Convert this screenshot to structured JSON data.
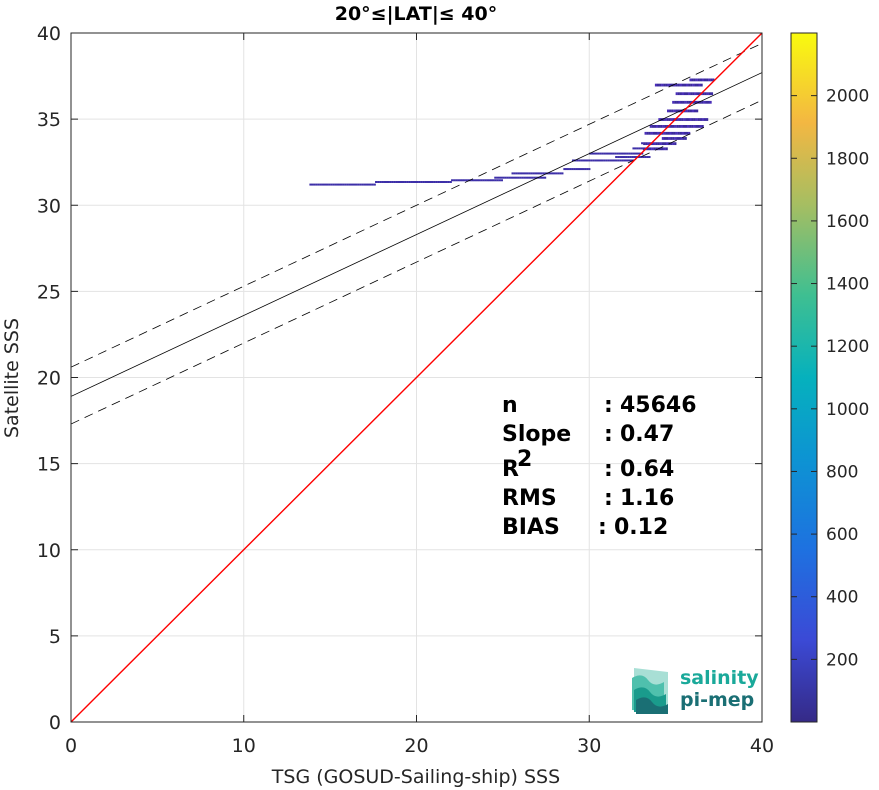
{
  "chart_data": {
    "type": "scatter",
    "title": "20°≤|LAT|≤ 40°",
    "xlabel": "TSG (GOSUD-Sailing-ship) SSS",
    "ylabel": "Satellite SSS",
    "xlim": [
      0,
      40
    ],
    "ylim": [
      0,
      40
    ],
    "xticks": [
      "0",
      "10",
      "20",
      "30",
      "40"
    ],
    "yticks": [
      "0",
      "5",
      "10",
      "15",
      "20",
      "25",
      "30",
      "35",
      "40"
    ],
    "grid": true,
    "colorbar": {
      "range": [
        0,
        2200
      ],
      "ticks": [
        "200",
        "400",
        "600",
        "800",
        "1000",
        "1200",
        "1400",
        "1600",
        "1800",
        "2000"
      ],
      "colormap": "parula"
    },
    "lines": {
      "identity": {
        "slope": 1,
        "intercept": 0,
        "color": "#ff0000"
      },
      "fit": {
        "slope": 0.47,
        "intercept": 18.9,
        "color": "#000000"
      },
      "fit_upper": {
        "slope": 0.47,
        "intercept": 20.6,
        "color": "#000000",
        "style": "dashed"
      },
      "fit_lower": {
        "slope": 0.47,
        "intercept": 17.3,
        "color": "#000000",
        "style": "dashed"
      }
    },
    "density_segments": [
      {
        "x0": 13.8,
        "x1": 17.6,
        "y": 31.2
      },
      {
        "x0": 17.6,
        "x1": 22.0,
        "y": 31.35
      },
      {
        "x0": 22.0,
        "x1": 25.0,
        "y": 31.45
      },
      {
        "x0": 24.5,
        "x1": 27.5,
        "y": 31.6
      },
      {
        "x0": 25.5,
        "x1": 28.5,
        "y": 31.85
      },
      {
        "x0": 28.5,
        "x1": 30.0,
        "y": 32.1
      },
      {
        "x0": 29.0,
        "x1": 32.5,
        "y": 32.6
      },
      {
        "x0": 30.0,
        "x1": 33.0,
        "y": 33.0
      },
      {
        "x0": 31.5,
        "x1": 33.5,
        "y": 32.8
      },
      {
        "x0": 33.0,
        "x1": 35.0,
        "y": 33.6
      },
      {
        "x0": 33.2,
        "x1": 35.8,
        "y": 34.2
      },
      {
        "x0": 33.5,
        "x1": 36.5,
        "y": 34.6
      },
      {
        "x0": 34.0,
        "x1": 36.8,
        "y": 35.0
      },
      {
        "x0": 34.5,
        "x1": 36.2,
        "y": 35.5
      },
      {
        "x0": 34.8,
        "x1": 37.0,
        "y": 36.0
      },
      {
        "x0": 35.0,
        "x1": 37.1,
        "y": 36.5
      },
      {
        "x0": 33.8,
        "x1": 36.5,
        "y": 37.0
      },
      {
        "x0": 35.8,
        "x1": 37.2,
        "y": 37.3
      },
      {
        "x0": 32.5,
        "x1": 34.5,
        "y": 33.3
      },
      {
        "x0": 34.2,
        "x1": 35.6,
        "y": 33.9
      }
    ],
    "stats": [
      {
        "label": "n",
        "sep": ":",
        "value": "45646",
        "super": ""
      },
      {
        "label": "Slope",
        "sep": ":",
        "value": "0.47",
        "super": ""
      },
      {
        "label": "R",
        "sep": ":",
        "value": "0.64",
        "super": "2"
      },
      {
        "label": "RMS",
        "sep": ":",
        "value": "1.16",
        "super": ""
      },
      {
        "label": "BIAS",
        "sep": ":",
        "value": "0.12",
        "super": ""
      }
    ]
  },
  "logo": {
    "line1": "salinity",
    "line2": "pi-mep",
    "color1": "#1aa99a",
    "color2": "#1a6f74"
  }
}
